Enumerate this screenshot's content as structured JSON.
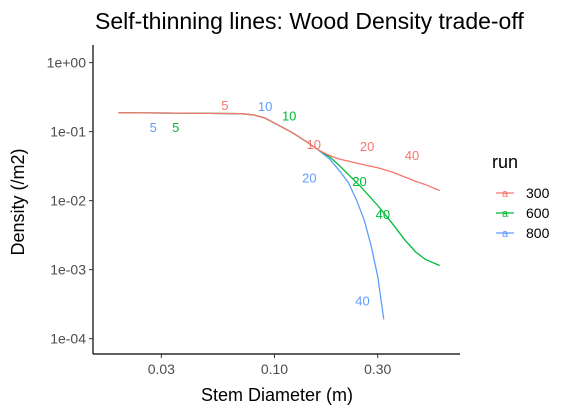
{
  "chart_data": {
    "type": "line",
    "title": "Self-thinning lines: Wood Density trade-off",
    "xlabel": "Stem Diameter (m)",
    "ylabel": "Density (/m2)",
    "x_scale": "log10",
    "y_scale": "log10",
    "xlim": [
      0.0145,
      0.72
    ],
    "ylim": [
      6e-05,
      1.8
    ],
    "x_ticks": [
      {
        "value": 0.03,
        "label": "0.03"
      },
      {
        "value": 0.1,
        "label": "0.10"
      },
      {
        "value": 0.3,
        "label": "0.30"
      }
    ],
    "y_ticks": [
      {
        "value": 1,
        "label": "1e+00"
      },
      {
        "value": 0.1,
        "label": "1e-01"
      },
      {
        "value": 0.01,
        "label": "1e-02"
      },
      {
        "value": 0.001,
        "label": "1e-03"
      },
      {
        "value": 0.0001,
        "label": "1e-04"
      }
    ],
    "grid": false,
    "legend": {
      "title": "run",
      "placement": "right",
      "key_glyph": "a"
    },
    "series": [
      {
        "name": "300",
        "color": "#F8766D",
        "points": [
          [
            0.019,
            0.188
          ],
          [
            0.03,
            0.186
          ],
          [
            0.05,
            0.184
          ],
          [
            0.07,
            0.182
          ],
          [
            0.08,
            0.175
          ],
          [
            0.09,
            0.158
          ],
          [
            0.1,
            0.133
          ],
          [
            0.12,
            0.098
          ],
          [
            0.14,
            0.072
          ],
          [
            0.16,
            0.054
          ],
          [
            0.18,
            0.045
          ],
          [
            0.2,
            0.04
          ],
          [
            0.25,
            0.034
          ],
          [
            0.3,
            0.03
          ],
          [
            0.35,
            0.026
          ],
          [
            0.4,
            0.022
          ],
          [
            0.45,
            0.019
          ],
          [
            0.5,
            0.017
          ],
          [
            0.58,
            0.014
          ]
        ],
        "labels": [
          {
            "text": "5",
            "x": 0.059,
            "y": 0.245
          },
          {
            "text": "10",
            "x": 0.152,
            "y": 0.066
          },
          {
            "text": "20",
            "x": 0.268,
            "y": 0.062
          },
          {
            "text": "40",
            "x": 0.432,
            "y": 0.0455
          }
        ]
      },
      {
        "name": "600",
        "color": "#00BA38",
        "points": [
          [
            0.019,
            0.188
          ],
          [
            0.03,
            0.186
          ],
          [
            0.05,
            0.184
          ],
          [
            0.07,
            0.182
          ],
          [
            0.08,
            0.175
          ],
          [
            0.09,
            0.158
          ],
          [
            0.1,
            0.133
          ],
          [
            0.12,
            0.098
          ],
          [
            0.14,
            0.072
          ],
          [
            0.16,
            0.054
          ],
          [
            0.18,
            0.043
          ],
          [
            0.2,
            0.032
          ],
          [
            0.25,
            0.016
          ],
          [
            0.3,
            0.0085
          ],
          [
            0.35,
            0.0047
          ],
          [
            0.4,
            0.0027
          ],
          [
            0.45,
            0.0018
          ],
          [
            0.5,
            0.0014
          ],
          [
            0.58,
            0.00115
          ]
        ],
        "labels": [
          {
            "text": "5",
            "x": 0.035,
            "y": 0.116
          },
          {
            "text": "10",
            "x": 0.117,
            "y": 0.17
          },
          {
            "text": "20",
            "x": 0.247,
            "y": 0.0192
          },
          {
            "text": "40",
            "x": 0.317,
            "y": 0.0064
          }
        ]
      },
      {
        "name": "800",
        "color": "#619CFF",
        "points": [
          [
            0.019,
            0.188
          ],
          [
            0.03,
            0.186
          ],
          [
            0.05,
            0.184
          ],
          [
            0.07,
            0.182
          ],
          [
            0.08,
            0.175
          ],
          [
            0.09,
            0.158
          ],
          [
            0.1,
            0.133
          ],
          [
            0.12,
            0.098
          ],
          [
            0.14,
            0.072
          ],
          [
            0.16,
            0.054
          ],
          [
            0.18,
            0.04
          ],
          [
            0.2,
            0.027
          ],
          [
            0.22,
            0.018
          ],
          [
            0.24,
            0.01
          ],
          [
            0.26,
            0.0052
          ],
          [
            0.28,
            0.0022
          ],
          [
            0.3,
            0.0008
          ],
          [
            0.32,
            0.00019
          ]
        ],
        "labels": [
          {
            "text": "5",
            "x": 0.0275,
            "y": 0.116
          },
          {
            "text": "10",
            "x": 0.0905,
            "y": 0.235
          },
          {
            "text": "20",
            "x": 0.145,
            "y": 0.0215
          },
          {
            "text": "40",
            "x": 0.255,
            "y": 0.00036
          }
        ]
      }
    ]
  }
}
